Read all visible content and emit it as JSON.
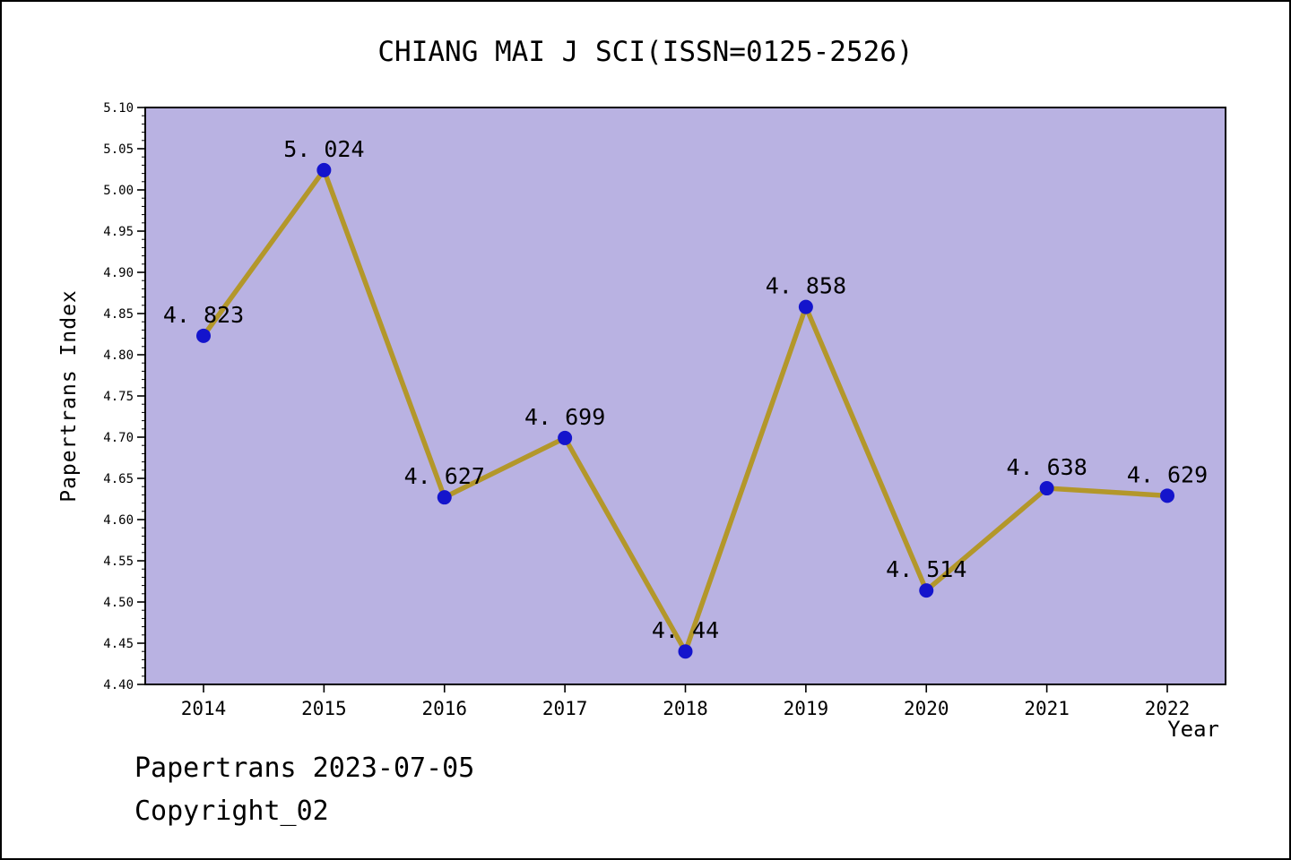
{
  "title": "CHIANG MAI J SCI(ISSN=0125-2526)",
  "footer": {
    "line1": "Papertrans 2023-07-05",
    "line2": "Copyright_02"
  },
  "chart_data": {
    "type": "line",
    "categories": [
      "2014",
      "2015",
      "2016",
      "2017",
      "2018",
      "2019",
      "2020",
      "2021",
      "2022"
    ],
    "series": [
      {
        "name": "Papertrans Index",
        "values": [
          4.823,
          5.024,
          4.627,
          4.699,
          4.44,
          4.858,
          4.514,
          4.638,
          4.629
        ]
      }
    ],
    "point_labels": [
      "4. 823",
      "5. 024",
      "4. 627",
      "4. 699",
      "4. 44",
      "4. 858",
      "4. 514",
      "4. 638",
      "4. 629"
    ],
    "title": "CHIANG MAI J SCI(ISSN=0125-2526)",
    "xlabel": "Year",
    "ylabel": "Papertrans Index",
    "ylim": [
      4.4,
      5.1
    ],
    "ytick_step": 0.05,
    "ytick_minor_step": 0.01,
    "grid": false,
    "legend": "none",
    "colors": {
      "line": "#b3972a",
      "marker": "#1414cc",
      "plot_bg": "#b9b2e2",
      "page_bg": "#ffffff",
      "axis": "#000000",
      "text": "#000000"
    }
  }
}
